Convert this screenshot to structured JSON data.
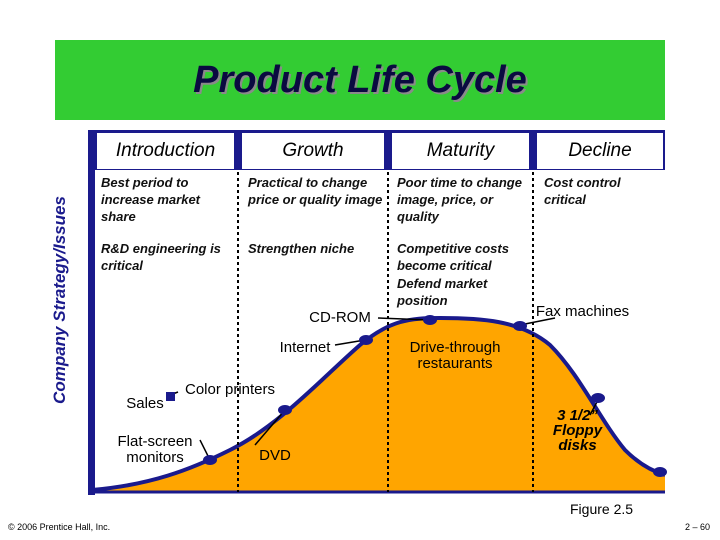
{
  "title": "Product Life Cycle",
  "y_axis_label": "Company Strategy/Issues",
  "stages": [
    {
      "name": "Introduction",
      "issues": [
        "Best period to increase market share",
        "R&D engineering is critical"
      ]
    },
    {
      "name": "Growth",
      "issues": [
        "Practical to change price or quality image",
        "Strengthen niche"
      ]
    },
    {
      "name": "Maturity",
      "issues": [
        "Poor time to change image, price, or quality",
        "Competitive costs become critical",
        "Defend market position"
      ]
    },
    {
      "name": "Decline",
      "issues": [
        "Cost control critical"
      ]
    }
  ],
  "products": [
    "CD-ROM",
    "Internet",
    "Sales",
    "Color printers",
    "Flat-screen monitors",
    "DVD",
    "Drive-through restaurants",
    "Fax machines",
    "3 1/2” Floppy disks"
  ],
  "figure": "Figure 2.5",
  "copyright": "© 2006 Prentice Hall, Inc.",
  "page": "2 – 60"
}
